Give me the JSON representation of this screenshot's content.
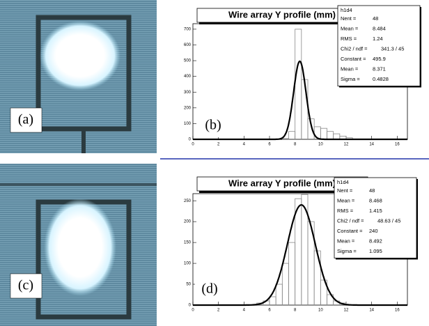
{
  "images": [
    {
      "label": "(a)"
    },
    {
      "label": "(c)"
    }
  ],
  "chart_data": [
    {
      "type": "histogram",
      "label": "(b)",
      "title": "Wire array Y profile (mm)",
      "bins": [
        7.0,
        7.5,
        8.0,
        8.5,
        9.0,
        9.5,
        10.0,
        10.5,
        11.0,
        11.5,
        12.0,
        12.5
      ],
      "counts": [
        5,
        50,
        700,
        380,
        130,
        80,
        70,
        50,
        35,
        20,
        10
      ],
      "color": "#888888",
      "fit_color": "#000000",
      "xlim": [
        0,
        16.8
      ],
      "ylim": [
        0,
        735
      ],
      "xticks": [
        0,
        2,
        4,
        6,
        8,
        10,
        12,
        14,
        16
      ],
      "yticks": [
        0,
        100,
        200,
        300,
        400,
        500,
        600,
        700
      ],
      "stats": {
        "name": "h1d4",
        "rows": [
          {
            "label": "Nent =",
            "value": 48
          },
          {
            "label": "Mean =",
            "value": 8.484
          },
          {
            "label": "RMS =",
            "value": 1.24
          },
          {
            "label": "Chi2 / ndf =",
            "value": "341.3 / 45"
          },
          {
            "label": "Constant =",
            "value": 495.9
          },
          {
            "label": "Mean =",
            "value": 8.371
          },
          {
            "label": "Sigma =",
            "value": 0.4828
          }
        ]
      }
    },
    {
      "type": "histogram",
      "label": "(d)",
      "title": "Wire array Y profile (mm)",
      "bins": [
        5.0,
        5.5,
        6.0,
        6.5,
        7.0,
        7.5,
        8.0,
        8.5,
        9.0,
        9.5,
        10.0,
        10.5,
        11.0,
        11.5,
        12.0
      ],
      "counts": [
        5,
        10,
        20,
        50,
        100,
        150,
        255,
        265,
        200,
        130,
        60,
        25,
        10,
        5
      ],
      "color": "#888888",
      "fit_color": "#000000",
      "xlim": [
        0,
        16.8
      ],
      "ylim": [
        0,
        267
      ],
      "xticks": [
        0,
        2,
        4,
        6,
        8,
        10,
        12,
        14,
        16
      ],
      "yticks": [
        0,
        50,
        100,
        150,
        200,
        250
      ],
      "stats": {
        "name": "h1d4",
        "rows": [
          {
            "label": "Nent =",
            "value": 48
          },
          {
            "label": "Mean =",
            "value": 8.468
          },
          {
            "label": "RMS =",
            "value": 1.415
          },
          {
            "label": "Chi2 / ndf =",
            "value": "48.63 / 45"
          },
          {
            "label": "Constant =",
            "value": 240
          },
          {
            "label": "Mean =",
            "value": 8.492
          },
          {
            "label": "Sigma =",
            "value": 1.095
          }
        ]
      }
    }
  ]
}
